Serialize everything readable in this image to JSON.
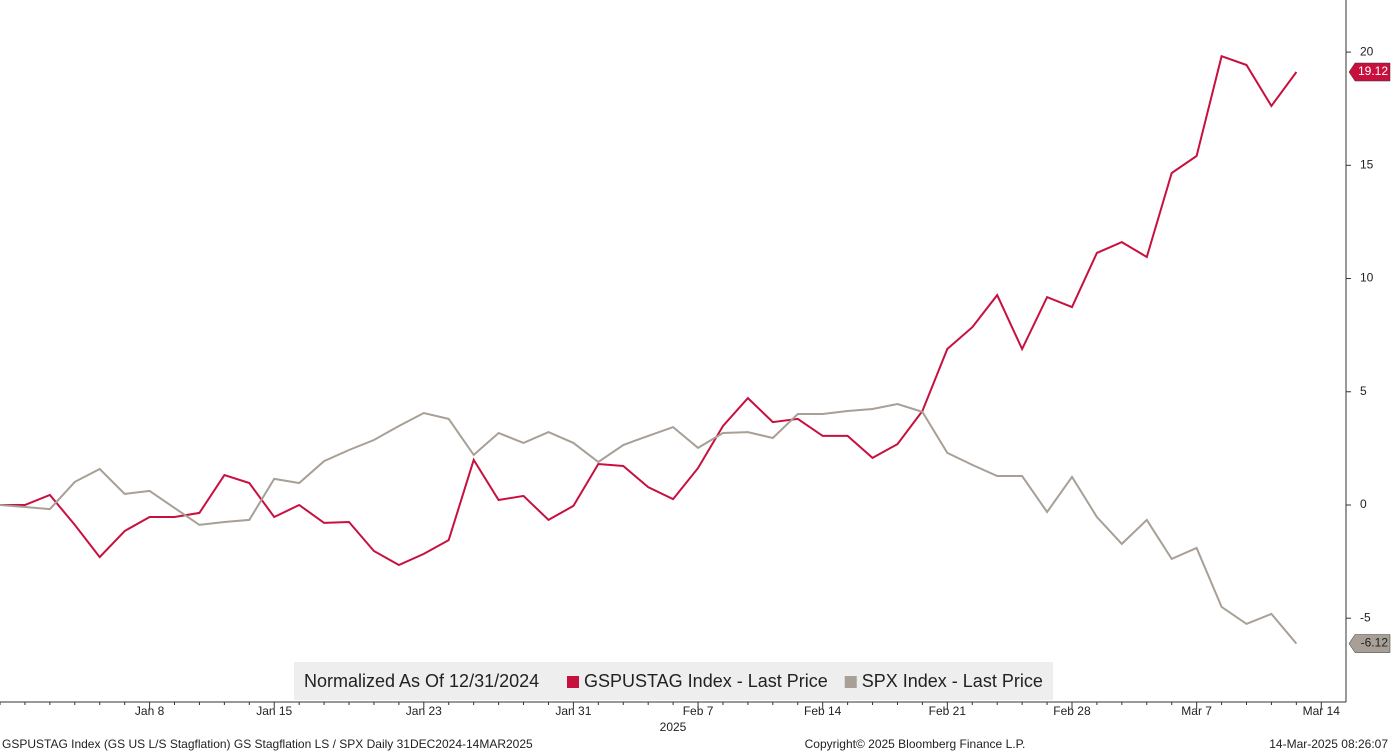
{
  "chart_data": {
    "type": "line",
    "legend_title": "Normalized As Of 12/31/2024",
    "x_sublabel": "2025",
    "categories": [
      null,
      null,
      null,
      null,
      null,
      null,
      "Jan 8",
      null,
      null,
      null,
      null,
      "Jan 15",
      null,
      null,
      null,
      null,
      null,
      "Jan 23",
      null,
      null,
      null,
      null,
      null,
      "Jan 31",
      null,
      null,
      null,
      null,
      "Feb 7",
      null,
      null,
      null,
      null,
      "Feb 14",
      null,
      null,
      null,
      null,
      "Feb 21",
      null,
      null,
      null,
      null,
      "Feb 28",
      null,
      null,
      null,
      null,
      "Mar 7",
      null,
      null,
      null,
      null,
      "Mar 14"
    ],
    "series": [
      {
        "name": "GSPUSTAG Index - Last Price",
        "color": "#c8103e",
        "values": [
          0,
          0,
          0.44,
          -0.88,
          -2.3,
          -1.15,
          -0.53,
          -0.53,
          -0.35,
          1.32,
          0.97,
          -0.53,
          0,
          -0.79,
          -0.75,
          -2.03,
          -2.65,
          -2.16,
          -1.55,
          1.99,
          0.22,
          0.4,
          -0.66,
          -0.04,
          1.81,
          1.72,
          0.79,
          0.26,
          1.63,
          3.49,
          4.72,
          3.66,
          3.8,
          3.05,
          3.05,
          2.08,
          2.69,
          4.15,
          6.89,
          7.85,
          9.27,
          6.89,
          9.18,
          8.74,
          11.13,
          11.61,
          10.95,
          14.66,
          15.41,
          19.82,
          19.43,
          17.62,
          19.12,
          null
        ]
      },
      {
        "name": "SPX Index - Last Price",
        "color": "#a89f96",
        "values": [
          0,
          -0.09,
          -0.18,
          1.02,
          1.59,
          0.49,
          0.62,
          -0.13,
          -0.88,
          -0.75,
          -0.66,
          1.15,
          0.97,
          1.94,
          2.43,
          2.87,
          3.49,
          4.06,
          3.8,
          2.21,
          3.18,
          2.74,
          3.22,
          2.74,
          1.9,
          2.65,
          3.05,
          3.44,
          2.52,
          3.18,
          3.22,
          2.96,
          4.02,
          4.02,
          4.15,
          4.24,
          4.46,
          4.11,
          2.3,
          1.77,
          1.28,
          1.28,
          -0.31,
          1.24,
          -0.53,
          -1.72,
          -0.66,
          -2.38,
          -1.9,
          -4.5,
          -5.25,
          -4.81,
          -6.12,
          null
        ]
      }
    ],
    "ylim": [
      -8.7,
      22.3
    ],
    "yticks": [
      -5,
      0,
      5,
      10,
      15,
      20
    ],
    "grid": false,
    "legend": "bottom",
    "footer_left": "GSPUSTAG Index (GS US L/S Stagflation) GS Stagflation LS / SPX  Daily 31DEC2024-14MAR2025",
    "footer_center": "Copyright© 2025 Bloomberg Finance L.P.",
    "footer_right": "14-Mar-2025 08:26:07"
  }
}
